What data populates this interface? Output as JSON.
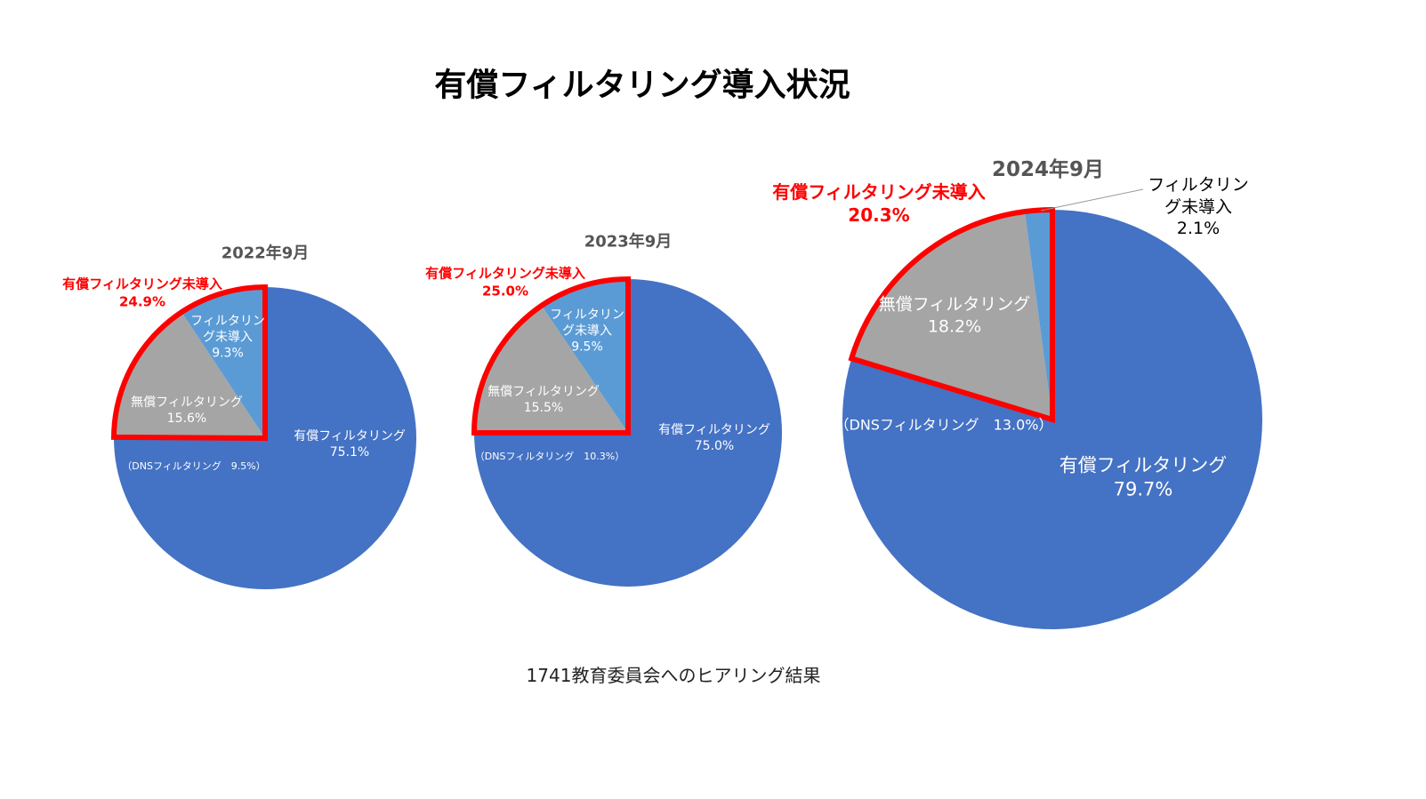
{
  "title": "有償フィルタリング導入状況",
  "footnote": "1741教育委員会へのヒアリング結果",
  "chart_data": [
    {
      "type": "pie",
      "title": "2022年9月",
      "categories": [
        "有償フィルタリング",
        "無償フィルタリング",
        "フィルタリング未導入"
      ],
      "values": [
        75.1,
        15.6,
        9.3
      ],
      "value_labels": [
        "75.1%",
        "15.6%",
        "9.3%"
      ],
      "colors": [
        "#4472c4",
        "#a5a5a5",
        "#5b9bd5"
      ],
      "highlight": {
        "label": "有償フィルタリング未導入",
        "value": 24.9,
        "value_label": "24.9%",
        "color": "#ff0000"
      },
      "annotation": "（DNSフィルタリング　9.5%）"
    },
    {
      "type": "pie",
      "title": "2023年9月",
      "categories": [
        "有償フィルタリング",
        "無償フィルタリング",
        "フィルタリング未導入"
      ],
      "values": [
        75.0,
        15.5,
        9.5
      ],
      "value_labels": [
        "75.0%",
        "15.5%",
        "9.5%"
      ],
      "colors": [
        "#4472c4",
        "#a5a5a5",
        "#5b9bd5"
      ],
      "highlight": {
        "label": "有償フィルタリング未導入",
        "value": 25.0,
        "value_label": "25.0%",
        "color": "#ff0000"
      },
      "annotation": "（DNSフィルタリング　10.3%）"
    },
    {
      "type": "pie",
      "title": "2024年9月",
      "categories": [
        "有償フィルタリング",
        "無償フィルタリング",
        "フィルタリング未導入"
      ],
      "values": [
        79.7,
        18.2,
        2.1
      ],
      "value_labels": [
        "79.7%",
        "18.2%",
        "2.1%"
      ],
      "colors": [
        "#4472c4",
        "#a5a5a5",
        "#5b9bd5"
      ],
      "highlight": {
        "label": "有償フィルタリング未導入",
        "value": 20.3,
        "value_label": "20.3%",
        "color": "#ff0000"
      },
      "annotation": "（DNSフィルタリング　13.0%）"
    }
  ]
}
